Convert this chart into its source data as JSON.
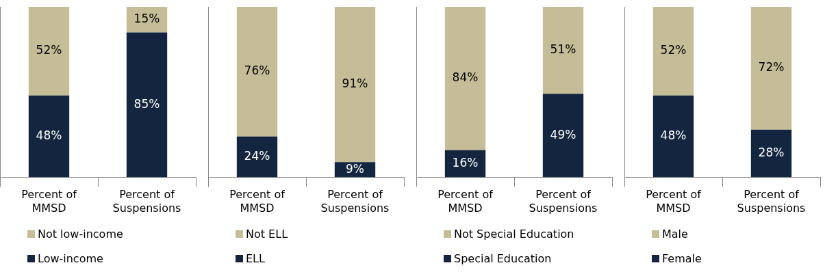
{
  "chart_data": [
    {
      "type": "bar",
      "stacked": true,
      "categories": [
        "Percent of MMSD",
        "Percent of Suspensions"
      ],
      "tick_labels": "x",
      "legend": "bottom",
      "series": [
        {
          "name": "Low-income",
          "color": "#14253f",
          "values": [
            48,
            85
          ],
          "value_labels": [
            "48%",
            "85%"
          ]
        },
        {
          "name": "Not low-income",
          "color": "#c4bd97",
          "values": [
            52,
            15
          ],
          "value_labels": [
            "52%",
            "15%"
          ]
        }
      ]
    },
    {
      "type": "bar",
      "stacked": true,
      "categories": [
        "Percent of MMSD",
        "Percent of Suspensions"
      ],
      "tick_labels": "x",
      "legend": "bottom",
      "series": [
        {
          "name": "ELL",
          "color": "#14253f",
          "values": [
            24,
            9
          ],
          "value_labels": [
            "24%",
            "9%"
          ]
        },
        {
          "name": "Not ELL",
          "color": "#c4bd97",
          "values": [
            76,
            91
          ],
          "value_labels": [
            "76%",
            "91%"
          ]
        }
      ]
    },
    {
      "type": "bar",
      "stacked": true,
      "categories": [
        "Percent of MMSD",
        "Percent of Suspensions"
      ],
      "tick_labels": "x",
      "legend": "bottom",
      "series": [
        {
          "name": "Special Education",
          "color": "#14253f",
          "values": [
            16,
            49
          ],
          "value_labels": [
            "16%",
            "49%"
          ]
        },
        {
          "name": "Not Special Education",
          "color": "#c4bd97",
          "values": [
            84,
            51
          ],
          "value_labels": [
            "84%",
            "51%"
          ]
        }
      ]
    },
    {
      "type": "bar",
      "stacked": true,
      "categories": [
        "Percent of MMSD",
        "Percent of Suspensions"
      ],
      "tick_labels": "x",
      "legend": "bottom",
      "series": [
        {
          "name": "Female",
          "color": "#14253f",
          "values": [
            48,
            28
          ],
          "value_labels": [
            "48%",
            "28%"
          ]
        },
        {
          "name": "Male",
          "color": "#c4bd97",
          "values": [
            52,
            72
          ],
          "value_labels": [
            "52%",
            "72%"
          ]
        }
      ]
    }
  ]
}
